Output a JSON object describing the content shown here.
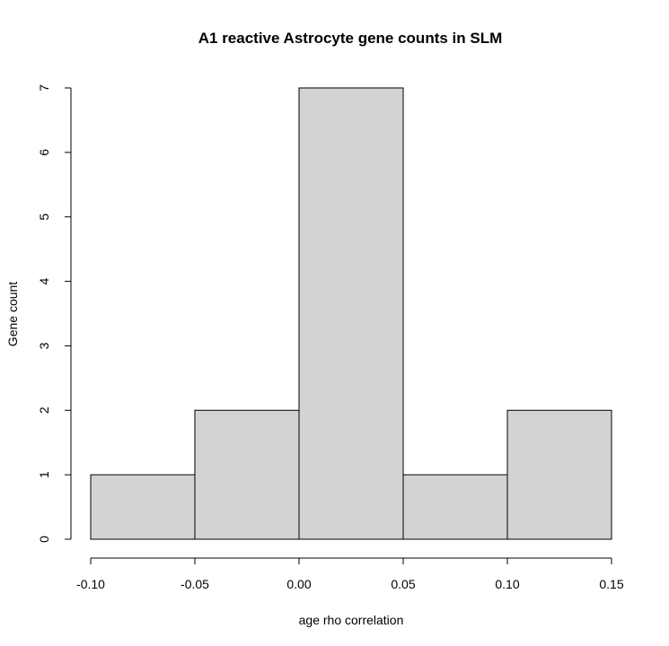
{
  "chart_data": {
    "type": "bar",
    "title": "A1 reactive Astrocyte gene counts in SLM",
    "xlabel": "age rho correlation",
    "ylabel": "Gene count",
    "bins": [
      {
        "from": -0.1,
        "to": -0.05,
        "count": 1
      },
      {
        "from": -0.05,
        "to": 0.0,
        "count": 2
      },
      {
        "from": 0.0,
        "to": 0.05,
        "count": 7
      },
      {
        "from": 0.05,
        "to": 0.1,
        "count": 1
      },
      {
        "from": 0.1,
        "to": 0.15,
        "count": 2
      }
    ],
    "xlim": [
      -0.1,
      0.15
    ],
    "ylim": [
      0,
      7
    ],
    "x_ticks": [
      "-0.10",
      "-0.05",
      "0.00",
      "0.05",
      "0.10",
      "0.15"
    ],
    "y_ticks": [
      "0",
      "1",
      "2",
      "3",
      "4",
      "5",
      "6",
      "7"
    ],
    "bar_color": "#d3d3d3",
    "border_color": "#000000",
    "grid": false
  }
}
